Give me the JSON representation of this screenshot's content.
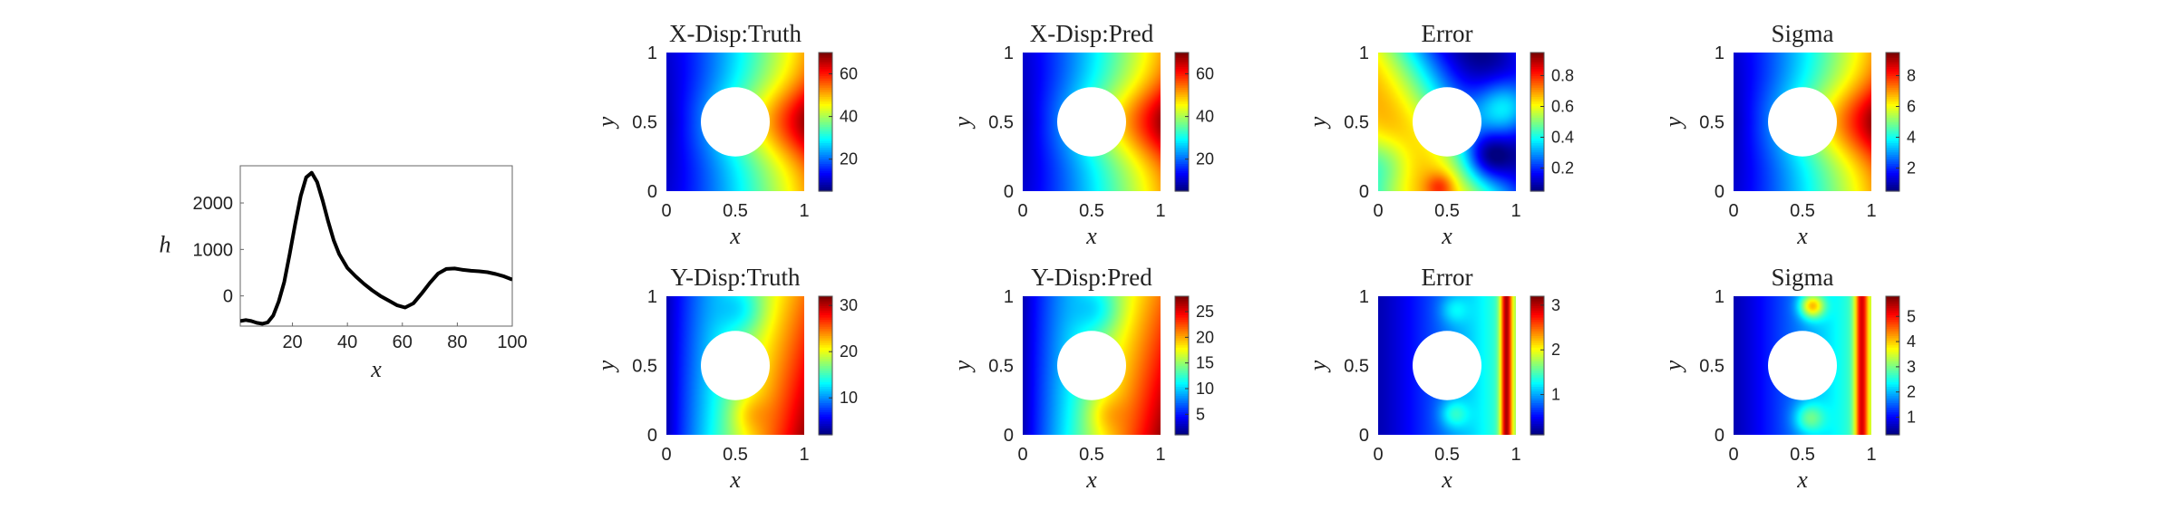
{
  "chart_data": [
    {
      "type": "line",
      "title": "",
      "xlabel": "x",
      "ylabel": "h",
      "xlim": [
        1,
        100
      ],
      "ylim": [
        -650,
        2800
      ],
      "xticks": [
        20,
        40,
        60,
        80,
        100
      ],
      "yticks": [
        0,
        1000,
        2000
      ],
      "grid": false,
      "x": [
        1,
        3,
        5,
        7,
        9,
        11,
        13,
        15,
        17,
        19,
        21,
        23,
        25,
        27,
        29,
        31,
        33,
        35,
        37,
        40,
        43,
        46,
        49,
        52,
        55,
        58,
        61,
        64,
        67,
        70,
        73,
        76,
        79,
        82,
        85,
        88,
        91,
        94,
        97,
        100
      ],
      "series": [
        {
          "values": [
            -540,
            -520,
            -540,
            -580,
            -600,
            -570,
            -420,
            -120,
            300,
            900,
            1550,
            2150,
            2550,
            2650,
            2450,
            2050,
            1600,
            1200,
            900,
            600,
            420,
            260,
            120,
            0,
            -100,
            -200,
            -250,
            -160,
            50,
            280,
            480,
            580,
            590,
            560,
            540,
            530,
            510,
            470,
            420,
            350
          ]
        }
      ]
    },
    {
      "type": "heatmap",
      "title": "X-Disp:Truth",
      "xlabel": "x",
      "ylabel": "y",
      "xlim": [
        0,
        1
      ],
      "ylim": [
        0,
        1
      ],
      "xticks": [
        "0",
        "0.5",
        "1"
      ],
      "yticks": [
        "0",
        "0.5",
        "1"
      ],
      "colormap": "jet",
      "colorbar": {
        "min": 5,
        "max": 70,
        "ticks": [
          "20",
          "40",
          "60"
        ]
      },
      "hole": {
        "center": [
          0.5,
          0.5
        ],
        "radius": 0.25
      },
      "pattern": "x-displacement, low on left, peak at right edge near y=0.5",
      "field": {
        "kind": "xdisp",
        "peak": 0.97
      }
    },
    {
      "type": "heatmap",
      "title": "X-Disp:Pred",
      "xlabel": "x",
      "ylabel": "y",
      "xlim": [
        0,
        1
      ],
      "ylim": [
        0,
        1
      ],
      "xticks": [
        "0",
        "0.5",
        "1"
      ],
      "yticks": [
        "0",
        "0.5",
        "1"
      ],
      "colormap": "jet",
      "colorbar": {
        "min": 5,
        "max": 70,
        "ticks": [
          "20",
          "40",
          "60"
        ]
      },
      "hole": {
        "center": [
          0.5,
          0.5
        ],
        "radius": 0.25
      },
      "pattern": "x-displacement prediction, nearly identical to truth",
      "field": {
        "kind": "xdisp",
        "peak": 0.96
      }
    },
    {
      "type": "heatmap",
      "title": "Error",
      "xlabel": "x",
      "ylabel": "y",
      "xlim": [
        0,
        1
      ],
      "ylim": [
        0,
        1
      ],
      "xticks": [
        "0",
        "0.5",
        "1"
      ],
      "yticks": [
        "0",
        "0.5",
        "1"
      ],
      "colormap": "jet",
      "colorbar": {
        "min": 0.05,
        "max": 0.95,
        "ticks": [
          "0.2",
          "0.4",
          "0.6",
          "0.8"
        ]
      },
      "hole": {
        "center": [
          0.5,
          0.5
        ],
        "radius": 0.25
      },
      "pattern": "error field with diagonal low band, high at top-right",
      "field": {
        "kind": "errx"
      }
    },
    {
      "type": "heatmap",
      "title": "Sigma",
      "xlabel": "x",
      "ylabel": "y",
      "xlim": [
        0,
        1
      ],
      "ylim": [
        0,
        1
      ],
      "xticks": [
        "0",
        "0.5",
        "1"
      ],
      "yticks": [
        "0",
        "0.5",
        "1"
      ],
      "colormap": "jet",
      "colorbar": {
        "min": 0.5,
        "max": 9.5,
        "ticks": [
          "2",
          "4",
          "6",
          "8"
        ]
      },
      "hole": {
        "center": [
          0.5,
          0.5
        ],
        "radius": 0.25
      },
      "pattern": "uncertainty similar in shape to x-displacement",
      "field": {
        "kind": "xdisp",
        "peak": 0.98
      }
    },
    {
      "type": "heatmap",
      "title": "Y-Disp:Truth",
      "xlabel": "x",
      "ylabel": "y",
      "xlim": [
        0,
        1
      ],
      "ylim": [
        0,
        1
      ],
      "xticks": [
        "0",
        "0.5",
        "1"
      ],
      "yticks": [
        "0",
        "0.5",
        "1"
      ],
      "colormap": "jet",
      "colorbar": {
        "min": 2,
        "max": 32,
        "ticks": [
          "10",
          "20",
          "30"
        ]
      },
      "hole": {
        "center": [
          0.5,
          0.5
        ],
        "radius": 0.25
      },
      "pattern": "y-displacement, low on left, high on right/bottom-right",
      "field": {
        "kind": "ydisp"
      }
    },
    {
      "type": "heatmap",
      "title": "Y-Disp:Pred",
      "xlabel": "x",
      "ylabel": "y",
      "xlim": [
        0,
        1
      ],
      "ylim": [
        0,
        1
      ],
      "xticks": [
        "0",
        "0.5",
        "1"
      ],
      "yticks": [
        "0",
        "0.5",
        "1"
      ],
      "colormap": "jet",
      "colorbar": {
        "min": 1,
        "max": 28,
        "ticks": [
          "5",
          "10",
          "15",
          "20",
          "25"
        ]
      },
      "hole": {
        "center": [
          0.5,
          0.5
        ],
        "radius": 0.25
      },
      "pattern": "y-displacement prediction",
      "field": {
        "kind": "ydisp"
      }
    },
    {
      "type": "heatmap",
      "title": "Error",
      "xlabel": "x",
      "ylabel": "y",
      "xlim": [
        0,
        1
      ],
      "ylim": [
        0,
        1
      ],
      "xticks": [
        "0",
        "0.5",
        "1"
      ],
      "yticks": [
        "0",
        "0.5",
        "1"
      ],
      "colormap": "jet",
      "colorbar": {
        "min": 0.1,
        "max": 3.2,
        "ticks": [
          "1",
          "2",
          "3"
        ]
      },
      "hole": {
        "center": [
          0.5,
          0.5
        ],
        "radius": 0.25
      },
      "pattern": "error low on left, high stripe at right edge",
      "field": {
        "kind": "erry"
      }
    },
    {
      "type": "heatmap",
      "title": "Sigma",
      "xlabel": "x",
      "ylabel": "y",
      "xlim": [
        0,
        1
      ],
      "ylim": [
        0,
        1
      ],
      "xticks": [
        "0",
        "0.5",
        "1"
      ],
      "yticks": [
        "0",
        "0.5",
        "1"
      ],
      "colormap": "jet",
      "colorbar": {
        "min": 0.3,
        "max": 5.8,
        "ticks": [
          "1",
          "2",
          "3",
          "4",
          "5"
        ]
      },
      "hole": {
        "center": [
          0.5,
          0.5
        ],
        "radius": 0.25
      },
      "pattern": "uncertainty, high stripe at right edge and top near x=0.55",
      "field": {
        "kind": "sigy"
      }
    }
  ]
}
